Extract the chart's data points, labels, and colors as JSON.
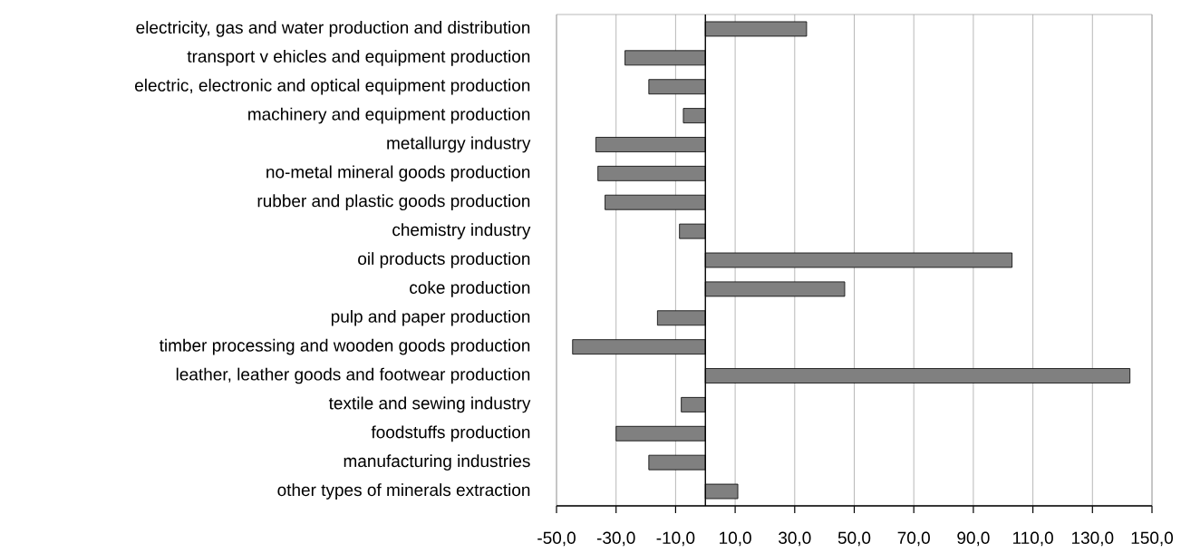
{
  "chart_data": {
    "type": "bar",
    "orientation": "horizontal",
    "categories": [
      "electricity, gas and water production and distribution",
      "transport v ehicles and equipment production",
      "electric, electronic and optical equipment production",
      "machinery and equipment production",
      "metallurgy industry",
      "no-metal mineral goods production",
      "rubber and plastic goods production",
      "chemistry industry",
      "oil products production",
      "coke production",
      "pulp and paper production",
      "timber processing and wooden goods production",
      "leather, leather goods and footwear production",
      "textile and sewing industry",
      "foodstuffs production",
      "manufacturing industries",
      "other types of minerals extraction"
    ],
    "values": [
      34.0,
      -27.0,
      -19.0,
      -7.4,
      -36.8,
      -36.1,
      -33.7,
      -8.7,
      103.0,
      46.8,
      -16.1,
      -44.6,
      142.6,
      -8.1,
      -30.0,
      -19.0,
      10.9
    ],
    "color": "#808080",
    "xlim": [
      -50,
      150
    ],
    "xticks": [
      {
        "value": -50,
        "label": "-50,0"
      },
      {
        "value": -30,
        "label": "-30,0"
      },
      {
        "value": -10,
        "label": "-10,0"
      },
      {
        "value": 10,
        "label": "10,0"
      },
      {
        "value": 30,
        "label": "30,0"
      },
      {
        "value": 50,
        "label": "50,0"
      },
      {
        "value": 70,
        "label": "70,0"
      },
      {
        "value": 90,
        "label": "90,0"
      },
      {
        "value": 110,
        "label": "110,0"
      },
      {
        "value": 130,
        "label": "130,0"
      },
      {
        "value": 150,
        "label": "150,0"
      }
    ],
    "grid": "x"
  }
}
